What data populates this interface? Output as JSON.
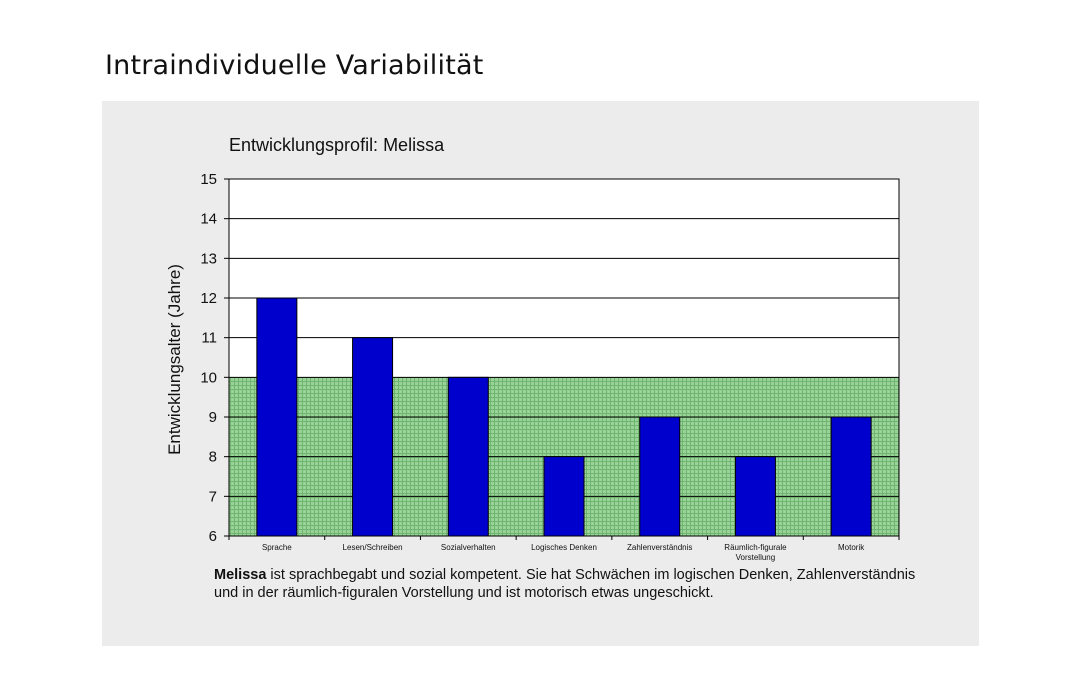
{
  "slide": {
    "title": "Intraindividuelle Variabilität"
  },
  "chart_data": {
    "type": "bar",
    "title": "Entwicklungsprofil: Melissa",
    "xlabel": "",
    "ylabel": "Entwicklungsalter (Jahre)",
    "ylim": [
      6,
      15
    ],
    "yticks": [
      6,
      7,
      8,
      9,
      10,
      11,
      12,
      13,
      14,
      15
    ],
    "categories": [
      "Sprache",
      "Lesen/Schreiben",
      "Sozialverhalten",
      "Logisches Denken",
      "Zahlenverständnis",
      "Räumlich-figurale Vorstellung",
      "Motorik"
    ],
    "values": [
      12,
      11,
      10,
      8,
      9,
      8,
      9
    ],
    "reference_band": [
      6,
      10
    ],
    "grid": true,
    "colors": {
      "bar": "#0000CC",
      "band": "#9AD39A",
      "band_grid": "#6FB46F",
      "gridline": "#000000"
    }
  },
  "caption": {
    "name": "Melissa",
    "text": " ist sprachbegabt und sozial kompetent. Sie hat Schwächen im logischen Denken, Zahlenverständnis und in der räumlich-figuralen Vorstellung und ist motorisch etwas ungeschickt."
  }
}
